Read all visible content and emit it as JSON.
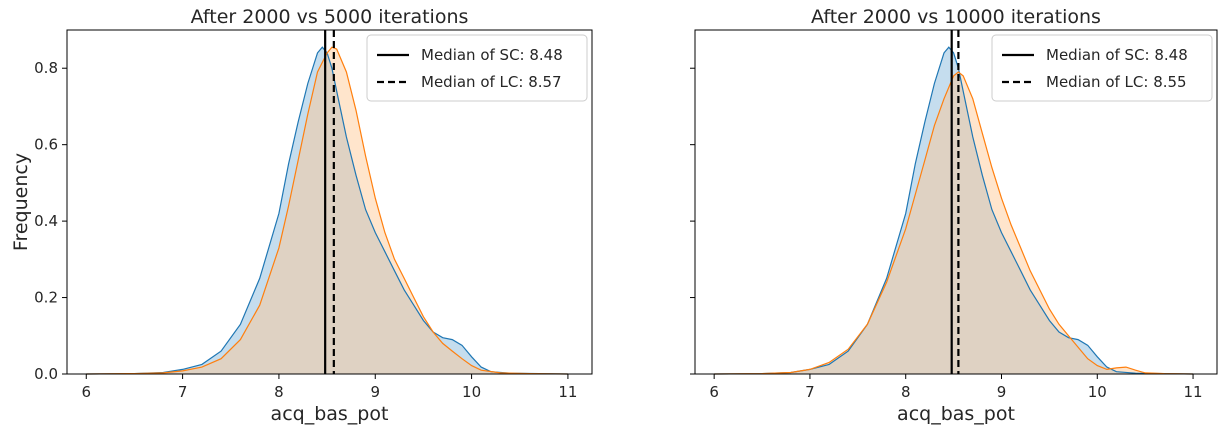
{
  "chart_data": [
    {
      "type": "area",
      "title": "After 2000 vs 5000 iterations",
      "xlabel": "acq_bas_pot",
      "ylabel": "Frequency",
      "xlim": [
        5.8,
        11.25
      ],
      "ylim": [
        0,
        0.9
      ],
      "x_ticks": [
        6,
        7,
        8,
        9,
        10,
        11
      ],
      "y_ticks": [
        0.0,
        0.2,
        0.4,
        0.6,
        0.8
      ],
      "grid": false,
      "legend_position": "top-right",
      "legend": [
        {
          "label": "Median of SC: 8.48",
          "style": "solid"
        },
        {
          "label": "Median of LC: 8.57",
          "style": "dashed"
        }
      ],
      "vlines": [
        {
          "x": 8.48,
          "style": "solid"
        },
        {
          "x": 8.57,
          "style": "dashed"
        }
      ],
      "series": [
        {
          "color": "#1f77b4",
          "fill": "#7fb3d9",
          "points": [
            [
              6.0,
              0.0
            ],
            [
              6.5,
              0.001
            ],
            [
              6.8,
              0.004
            ],
            [
              7.0,
              0.012
            ],
            [
              7.2,
              0.025
            ],
            [
              7.4,
              0.06
            ],
            [
              7.6,
              0.13
            ],
            [
              7.8,
              0.25
            ],
            [
              8.0,
              0.42
            ],
            [
              8.1,
              0.55
            ],
            [
              8.2,
              0.66
            ],
            [
              8.3,
              0.76
            ],
            [
              8.4,
              0.84
            ],
            [
              8.45,
              0.855
            ],
            [
              8.5,
              0.84
            ],
            [
              8.55,
              0.8
            ],
            [
              8.6,
              0.74
            ],
            [
              8.7,
              0.62
            ],
            [
              8.8,
              0.52
            ],
            [
              8.9,
              0.43
            ],
            [
              9.0,
              0.37
            ],
            [
              9.1,
              0.32
            ],
            [
              9.2,
              0.27
            ],
            [
              9.3,
              0.22
            ],
            [
              9.4,
              0.18
            ],
            [
              9.5,
              0.14
            ],
            [
              9.6,
              0.11
            ],
            [
              9.7,
              0.095
            ],
            [
              9.8,
              0.09
            ],
            [
              9.9,
              0.075
            ],
            [
              10.0,
              0.045
            ],
            [
              10.1,
              0.018
            ],
            [
              10.2,
              0.006
            ],
            [
              10.4,
              0.002
            ],
            [
              11.0,
              0.0
            ]
          ]
        },
        {
          "color": "#ff7f0e",
          "fill": "#ffc58f",
          "points": [
            [
              6.0,
              0.0
            ],
            [
              6.5,
              0.001
            ],
            [
              6.8,
              0.003
            ],
            [
              7.0,
              0.008
            ],
            [
              7.2,
              0.018
            ],
            [
              7.4,
              0.04
            ],
            [
              7.6,
              0.09
            ],
            [
              7.8,
              0.18
            ],
            [
              8.0,
              0.33
            ],
            [
              8.1,
              0.44
            ],
            [
              8.2,
              0.56
            ],
            [
              8.3,
              0.68
            ],
            [
              8.4,
              0.79
            ],
            [
              8.5,
              0.84
            ],
            [
              8.55,
              0.855
            ],
            [
              8.6,
              0.85
            ],
            [
              8.7,
              0.79
            ],
            [
              8.8,
              0.69
            ],
            [
              8.9,
              0.57
            ],
            [
              9.0,
              0.46
            ],
            [
              9.1,
              0.37
            ],
            [
              9.2,
              0.3
            ],
            [
              9.3,
              0.25
            ],
            [
              9.4,
              0.2
            ],
            [
              9.5,
              0.15
            ],
            [
              9.6,
              0.11
            ],
            [
              9.7,
              0.08
            ],
            [
              9.8,
              0.06
            ],
            [
              9.9,
              0.04
            ],
            [
              10.0,
              0.022
            ],
            [
              10.1,
              0.01
            ],
            [
              10.3,
              0.003
            ],
            [
              10.6,
              0.001
            ],
            [
              11.0,
              0.0
            ]
          ]
        }
      ]
    },
    {
      "type": "area",
      "title": "After 2000 vs 10000 iterations",
      "xlabel": "acq_bas_pot",
      "ylabel": "",
      "xlim": [
        5.8,
        11.25
      ],
      "ylim": [
        0,
        0.9
      ],
      "x_ticks": [
        6,
        7,
        8,
        9,
        10,
        11
      ],
      "y_ticks": [
        0.0,
        0.2,
        0.4,
        0.6,
        0.8
      ],
      "show_y_tick_labels": false,
      "grid": false,
      "legend_position": "top-right",
      "legend": [
        {
          "label": "Median of SC: 8.48",
          "style": "solid"
        },
        {
          "label": "Median of LC: 8.55",
          "style": "dashed"
        }
      ],
      "vlines": [
        {
          "x": 8.48,
          "style": "solid"
        },
        {
          "x": 8.55,
          "style": "dashed"
        }
      ],
      "series": [
        {
          "color": "#1f77b4",
          "fill": "#7fb3d9",
          "points": [
            [
              6.0,
              0.0
            ],
            [
              6.5,
              0.001
            ],
            [
              6.8,
              0.004
            ],
            [
              7.0,
              0.012
            ],
            [
              7.2,
              0.025
            ],
            [
              7.4,
              0.06
            ],
            [
              7.6,
              0.13
            ],
            [
              7.8,
              0.25
            ],
            [
              8.0,
              0.42
            ],
            [
              8.1,
              0.55
            ],
            [
              8.2,
              0.66
            ],
            [
              8.3,
              0.76
            ],
            [
              8.4,
              0.84
            ],
            [
              8.45,
              0.855
            ],
            [
              8.5,
              0.84
            ],
            [
              8.55,
              0.8
            ],
            [
              8.6,
              0.74
            ],
            [
              8.7,
              0.62
            ],
            [
              8.8,
              0.52
            ],
            [
              8.9,
              0.43
            ],
            [
              9.0,
              0.37
            ],
            [
              9.1,
              0.32
            ],
            [
              9.2,
              0.27
            ],
            [
              9.3,
              0.22
            ],
            [
              9.4,
              0.18
            ],
            [
              9.5,
              0.14
            ],
            [
              9.6,
              0.11
            ],
            [
              9.7,
              0.095
            ],
            [
              9.8,
              0.09
            ],
            [
              9.9,
              0.075
            ],
            [
              10.0,
              0.045
            ],
            [
              10.1,
              0.018
            ],
            [
              10.2,
              0.006
            ],
            [
              10.4,
              0.002
            ],
            [
              11.0,
              0.0
            ]
          ]
        },
        {
          "color": "#ff7f0e",
          "fill": "#ffc58f",
          "points": [
            [
              6.0,
              0.0
            ],
            [
              6.5,
              0.001
            ],
            [
              6.8,
              0.004
            ],
            [
              7.0,
              0.012
            ],
            [
              7.2,
              0.03
            ],
            [
              7.4,
              0.065
            ],
            [
              7.6,
              0.13
            ],
            [
              7.8,
              0.24
            ],
            [
              8.0,
              0.38
            ],
            [
              8.1,
              0.47
            ],
            [
              8.2,
              0.56
            ],
            [
              8.3,
              0.65
            ],
            [
              8.4,
              0.72
            ],
            [
              8.5,
              0.78
            ],
            [
              8.55,
              0.79
            ],
            [
              8.6,
              0.78
            ],
            [
              8.7,
              0.72
            ],
            [
              8.8,
              0.63
            ],
            [
              8.9,
              0.54
            ],
            [
              9.0,
              0.46
            ],
            [
              9.1,
              0.39
            ],
            [
              9.2,
              0.33
            ],
            [
              9.3,
              0.27
            ],
            [
              9.4,
              0.22
            ],
            [
              9.5,
              0.17
            ],
            [
              9.6,
              0.13
            ],
            [
              9.7,
              0.1
            ],
            [
              9.8,
              0.07
            ],
            [
              9.9,
              0.04
            ],
            [
              10.0,
              0.022
            ],
            [
              10.1,
              0.012
            ],
            [
              10.2,
              0.016
            ],
            [
              10.3,
              0.018
            ],
            [
              10.4,
              0.01
            ],
            [
              10.5,
              0.003
            ],
            [
              10.7,
              0.001
            ],
            [
              11.0,
              0.0
            ]
          ]
        }
      ]
    }
  ]
}
